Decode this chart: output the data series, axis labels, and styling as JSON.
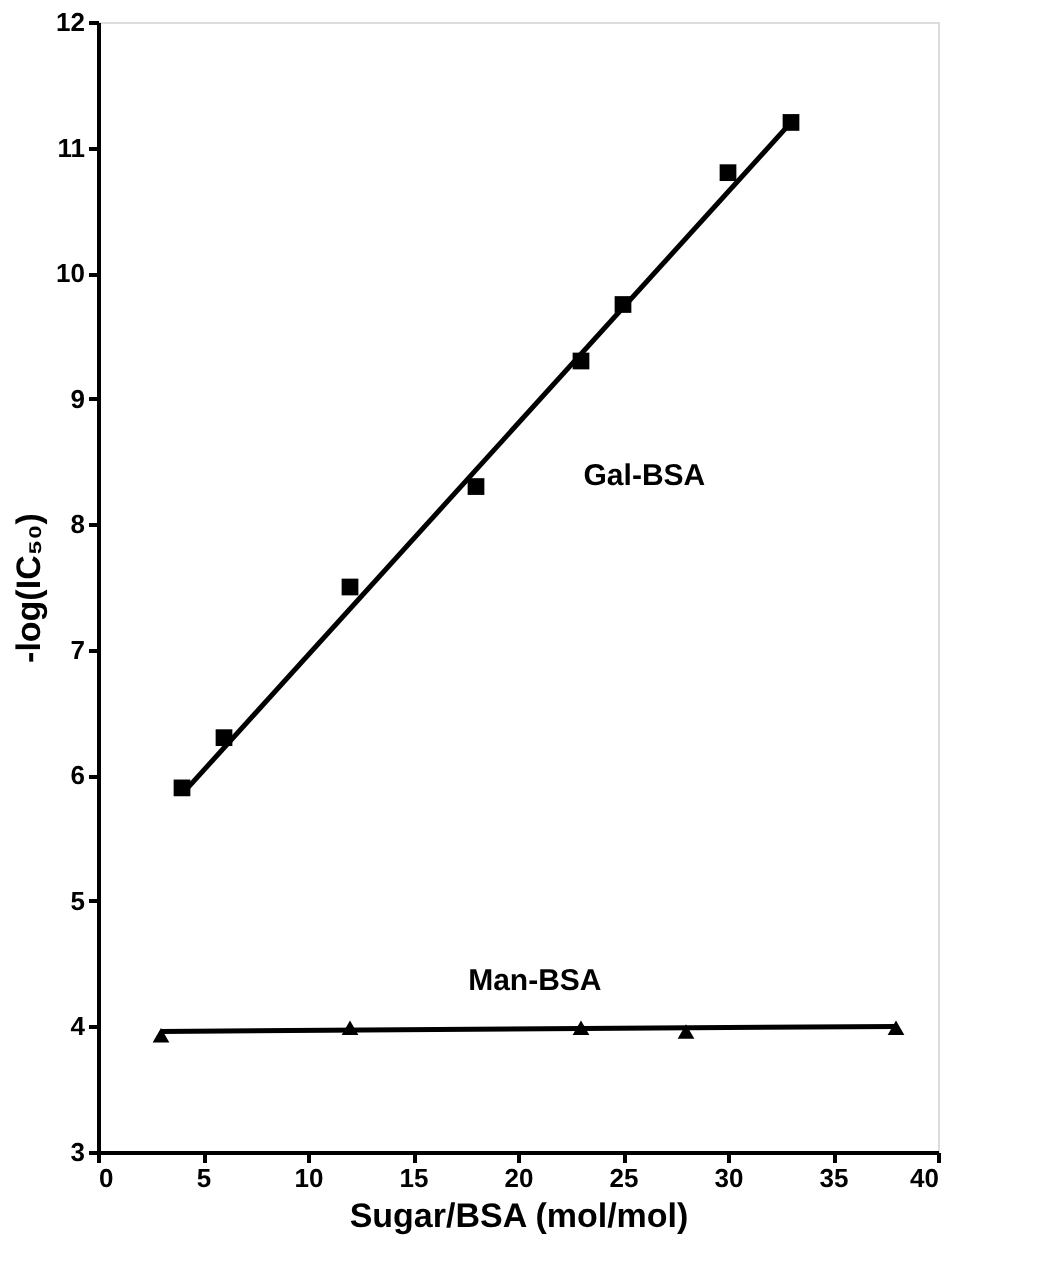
{
  "chart_data": {
    "type": "scatter",
    "xlabel": "Sugar/BSA (mol/mol)",
    "ylabel": "-log(IC₅₀)",
    "xlim": [
      0,
      40
    ],
    "xticks": [
      0,
      5,
      10,
      15,
      20,
      25,
      30,
      35,
      40
    ],
    "ylim": [
      3,
      12
    ],
    "yticks": [
      3,
      4,
      5,
      6,
      7,
      8,
      9,
      10,
      11,
      12
    ],
    "grid": false,
    "series": [
      {
        "name": "Gal-BSA",
        "marker": "square",
        "color": "#000000",
        "x": [
          4,
          6,
          12,
          18,
          23,
          25,
          30,
          33
        ],
        "values": [
          5.9,
          6.3,
          7.5,
          8.3,
          9.3,
          9.75,
          10.8,
          11.2
        ]
      },
      {
        "type": "line",
        "line_style": "solid",
        "color": "#000000",
        "x": [
          4,
          33
        ],
        "values": [
          5.85,
          11.2
        ]
      },
      {
        "name": "Man-BSA",
        "marker": "triangle",
        "color": "#000000",
        "x": [
          3,
          12,
          23,
          28,
          38
        ],
        "values": [
          3.93,
          3.99,
          3.99,
          3.96,
          3.99
        ]
      },
      {
        "type": "line",
        "line_style": "solid",
        "color": "#000000",
        "x": [
          3,
          38
        ],
        "values": [
          3.96,
          4.0
        ]
      }
    ]
  }
}
